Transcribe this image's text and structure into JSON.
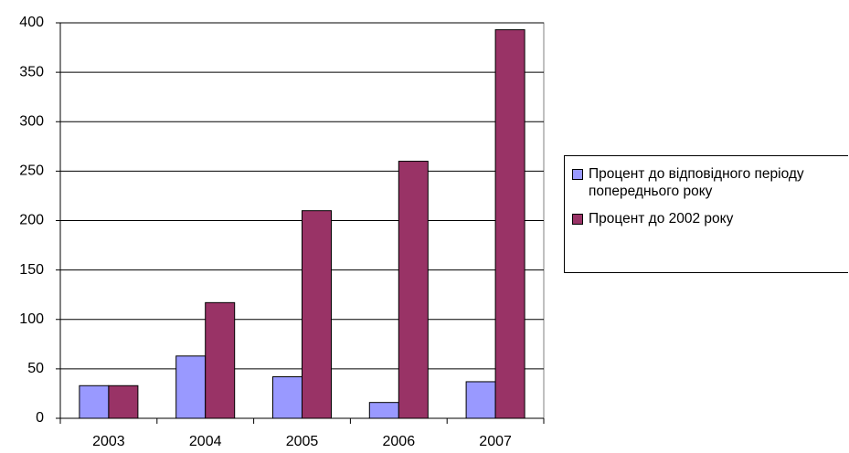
{
  "chart_data": {
    "type": "bar",
    "categories": [
      "2003",
      "2004",
      "2005",
      "2006",
      "2007"
    ],
    "series": [
      {
        "name": "Процент до відповідного періоду попереднього року",
        "color": "#9999ff",
        "values": [
          33,
          63,
          42,
          16,
          37
        ]
      },
      {
        "name": "Процент до 2002 року",
        "color": "#993366",
        "values": [
          33,
          117,
          210,
          260,
          393
        ]
      }
    ],
    "ylim": [
      0,
      400
    ],
    "yticks": [
      0,
      50,
      100,
      150,
      200,
      250,
      300,
      350,
      400
    ],
    "grid": true,
    "legend": "right"
  }
}
